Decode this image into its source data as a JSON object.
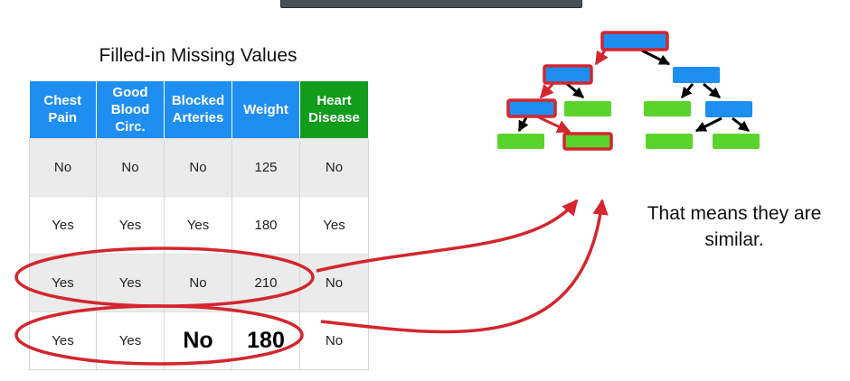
{
  "slide": {
    "table_title": "Filled-in Missing Values",
    "caption": "That means they are similar."
  },
  "table": {
    "headers": [
      {
        "label": "Chest Pain",
        "color": "#1f8ef1"
      },
      {
        "label": "Good Blood Circ.",
        "color": "#1f8ef1"
      },
      {
        "label": "Blocked Arteries",
        "color": "#1f8ef1"
      },
      {
        "label": "Weight",
        "color": "#1f8ef1"
      },
      {
        "label": "Heart Disease",
        "color": "#129c1c"
      }
    ],
    "rows": [
      [
        "No",
        "No",
        "No",
        "125",
        "No"
      ],
      [
        "Yes",
        "Yes",
        "Yes",
        "180",
        "Yes"
      ],
      [
        "Yes",
        "Yes",
        "No",
        "210",
        "No"
      ],
      [
        "Yes",
        "Yes",
        "No",
        "180",
        "No"
      ]
    ],
    "filled_in_values": [
      "No",
      "180"
    ]
  },
  "colors": {
    "node_blue": "#1f8ef1",
    "node_green": "#5ad42c",
    "highlight_red": "#d3262d",
    "arrow_black": "#000000"
  }
}
